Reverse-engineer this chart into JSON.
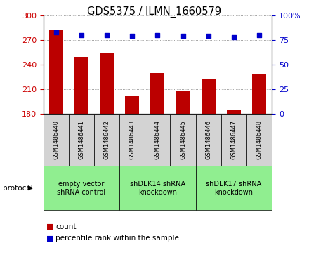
{
  "title": "GDS5375 / ILMN_1660579",
  "samples": [
    "GSM1486440",
    "GSM1486441",
    "GSM1486442",
    "GSM1486443",
    "GSM1486444",
    "GSM1486445",
    "GSM1486446",
    "GSM1486447",
    "GSM1486448"
  ],
  "counts": [
    283,
    249,
    254,
    201,
    229,
    207,
    222,
    185,
    228
  ],
  "percentiles": [
    83,
    80,
    80,
    79,
    80,
    79,
    79,
    78,
    80
  ],
  "ylim_left": [
    180,
    300
  ],
  "ylim_right": [
    0,
    100
  ],
  "yticks_left": [
    180,
    210,
    240,
    270,
    300
  ],
  "yticks_right": [
    0,
    25,
    50,
    75,
    100
  ],
  "bar_color": "#bb0000",
  "dot_color": "#0000cc",
  "bar_width": 0.55,
  "groups": [
    {
      "label": "empty vector\nshRNA control",
      "start": 0,
      "end": 3,
      "color": "#90ee90"
    },
    {
      "label": "shDEK14 shRNA\nknockdown",
      "start": 3,
      "end": 6,
      "color": "#90ee90"
    },
    {
      "label": "shDEK17 shRNA\nknockdown",
      "start": 6,
      "end": 9,
      "color": "#90ee90"
    }
  ],
  "protocol_label": "protocol",
  "legend_count_label": "count",
  "legend_pct_label": "percentile rank within the sample",
  "tick_label_color_left": "#cc0000",
  "tick_label_color_right": "#0000cc",
  "background_label_area": "#d3d3d3",
  "background_plot": "#ffffff"
}
